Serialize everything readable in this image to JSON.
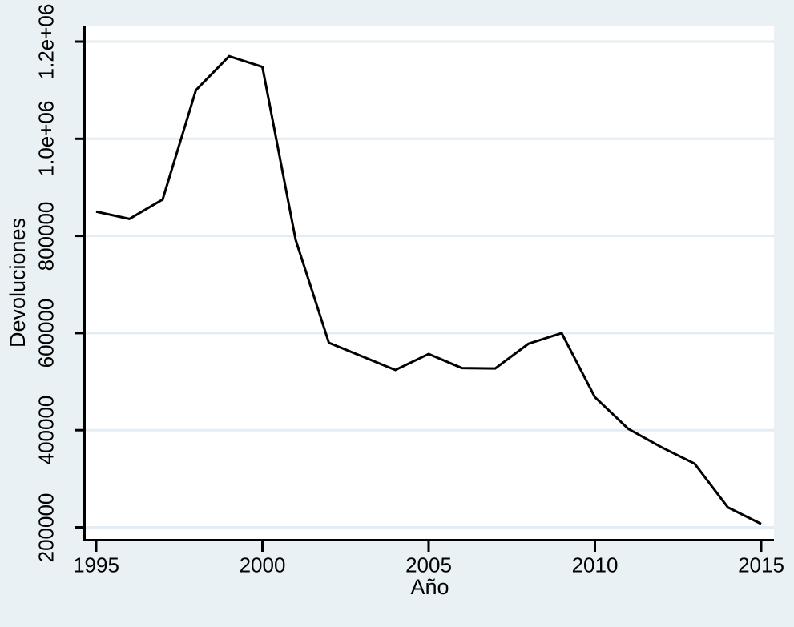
{
  "colors": {
    "background": "#eaf1f4",
    "plot_background": "#ffffff",
    "gridline": "#e3edf3",
    "axis": "#000000",
    "line": "#000000",
    "text": "#000000"
  },
  "chart_data": {
    "type": "line",
    "title": "",
    "xlabel": "Año",
    "ylabel": "Devoluciones",
    "grid": true,
    "legend_position": "none",
    "series_name": "Devoluciones",
    "xlim": [
      1995,
      2015
    ],
    "ylim": [
      200000,
      1200000
    ],
    "x": [
      1995,
      1996,
      1997,
      1998,
      1999,
      2000,
      2001,
      2002,
      2003,
      2004,
      2005,
      2006,
      2007,
      2008,
      2009,
      2010,
      2011,
      2012,
      2013,
      2014,
      2015
    ],
    "values": [
      850000,
      835000,
      875000,
      1100000,
      1170000,
      1148000,
      792000,
      580000,
      552000,
      524000,
      557000,
      528000,
      527000,
      578000,
      600000,
      468000,
      403000,
      365000,
      331000,
      241000,
      207000
    ],
    "x_ticks": [
      {
        "value": 1995,
        "label": "1995"
      },
      {
        "value": 2000,
        "label": "2000"
      },
      {
        "value": 2005,
        "label": "2005"
      },
      {
        "value": 2010,
        "label": "2010"
      },
      {
        "value": 2015,
        "label": "2015"
      }
    ],
    "y_ticks": [
      {
        "value": 200000,
        "label": "200000"
      },
      {
        "value": 400000,
        "label": "400000"
      },
      {
        "value": 600000,
        "label": "600000"
      },
      {
        "value": 800000,
        "label": "800000"
      },
      {
        "value": 1000000,
        "label": "1.0e+06"
      },
      {
        "value": 1200000,
        "label": "1.2e+06"
      }
    ]
  }
}
